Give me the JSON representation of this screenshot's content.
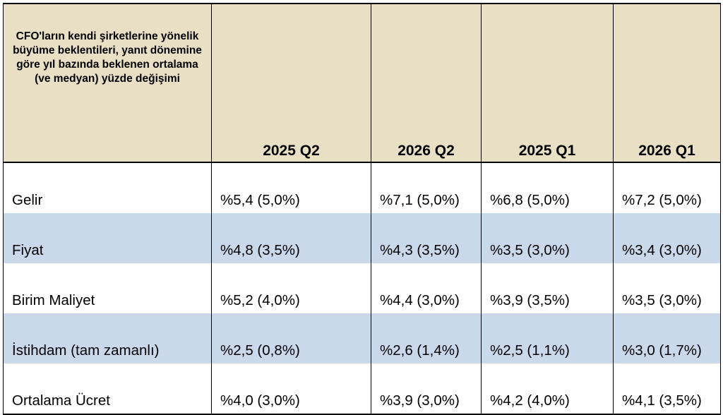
{
  "table": {
    "header": {
      "description": "CFO'ların kendi şirketlerine yönelik büyüme beklentileri, yanıt dönemine göre yıl bazında beklenen ortalama (ve medyan) yüzde değişimi",
      "columns": [
        "2025 Q2",
        "2026 Q2",
        "2025 Q1",
        "2026 Q1"
      ]
    },
    "rows": [
      {
        "label": "Gelir",
        "values": [
          "%5,4 (5,0%)",
          "%7,1 (5,0%)",
          "%6,8 (5,0%)",
          "%7,2 (5,0%)"
        ]
      },
      {
        "label": "Fiyat",
        "values": [
          "%4,8 (3,5%)",
          "%4,3 (3,5%)",
          "%3,5 (3,0%)",
          "%3,4 (3,0%)"
        ]
      },
      {
        "label": "Birim Maliyet",
        "values": [
          "%5,2 (4,0%)",
          "%4,4 (3,0%)",
          "%3,9 (3,5%)",
          "%3,5 (3,0%)"
        ]
      },
      {
        "label": "İstihdam (tam zamanlı)",
        "values": [
          "%2,5 (0,8%)",
          "%2,6 (1,4%)",
          "%2,5 (1,1%)",
          "%3,0 (1,7%)"
        ]
      },
      {
        "label": "Ortalama Ücret",
        "values": [
          "%4,0 (3,0%)",
          "%3,9 (3,0%)",
          "%4,2 (4,0%)",
          "%4,1 (3,5%)"
        ]
      }
    ],
    "colors": {
      "header_bg": "#e9dfc4",
      "shaded_row_bg": "#cad8ec",
      "plain_row_bg": "#ffffff",
      "border": "#000000"
    }
  }
}
